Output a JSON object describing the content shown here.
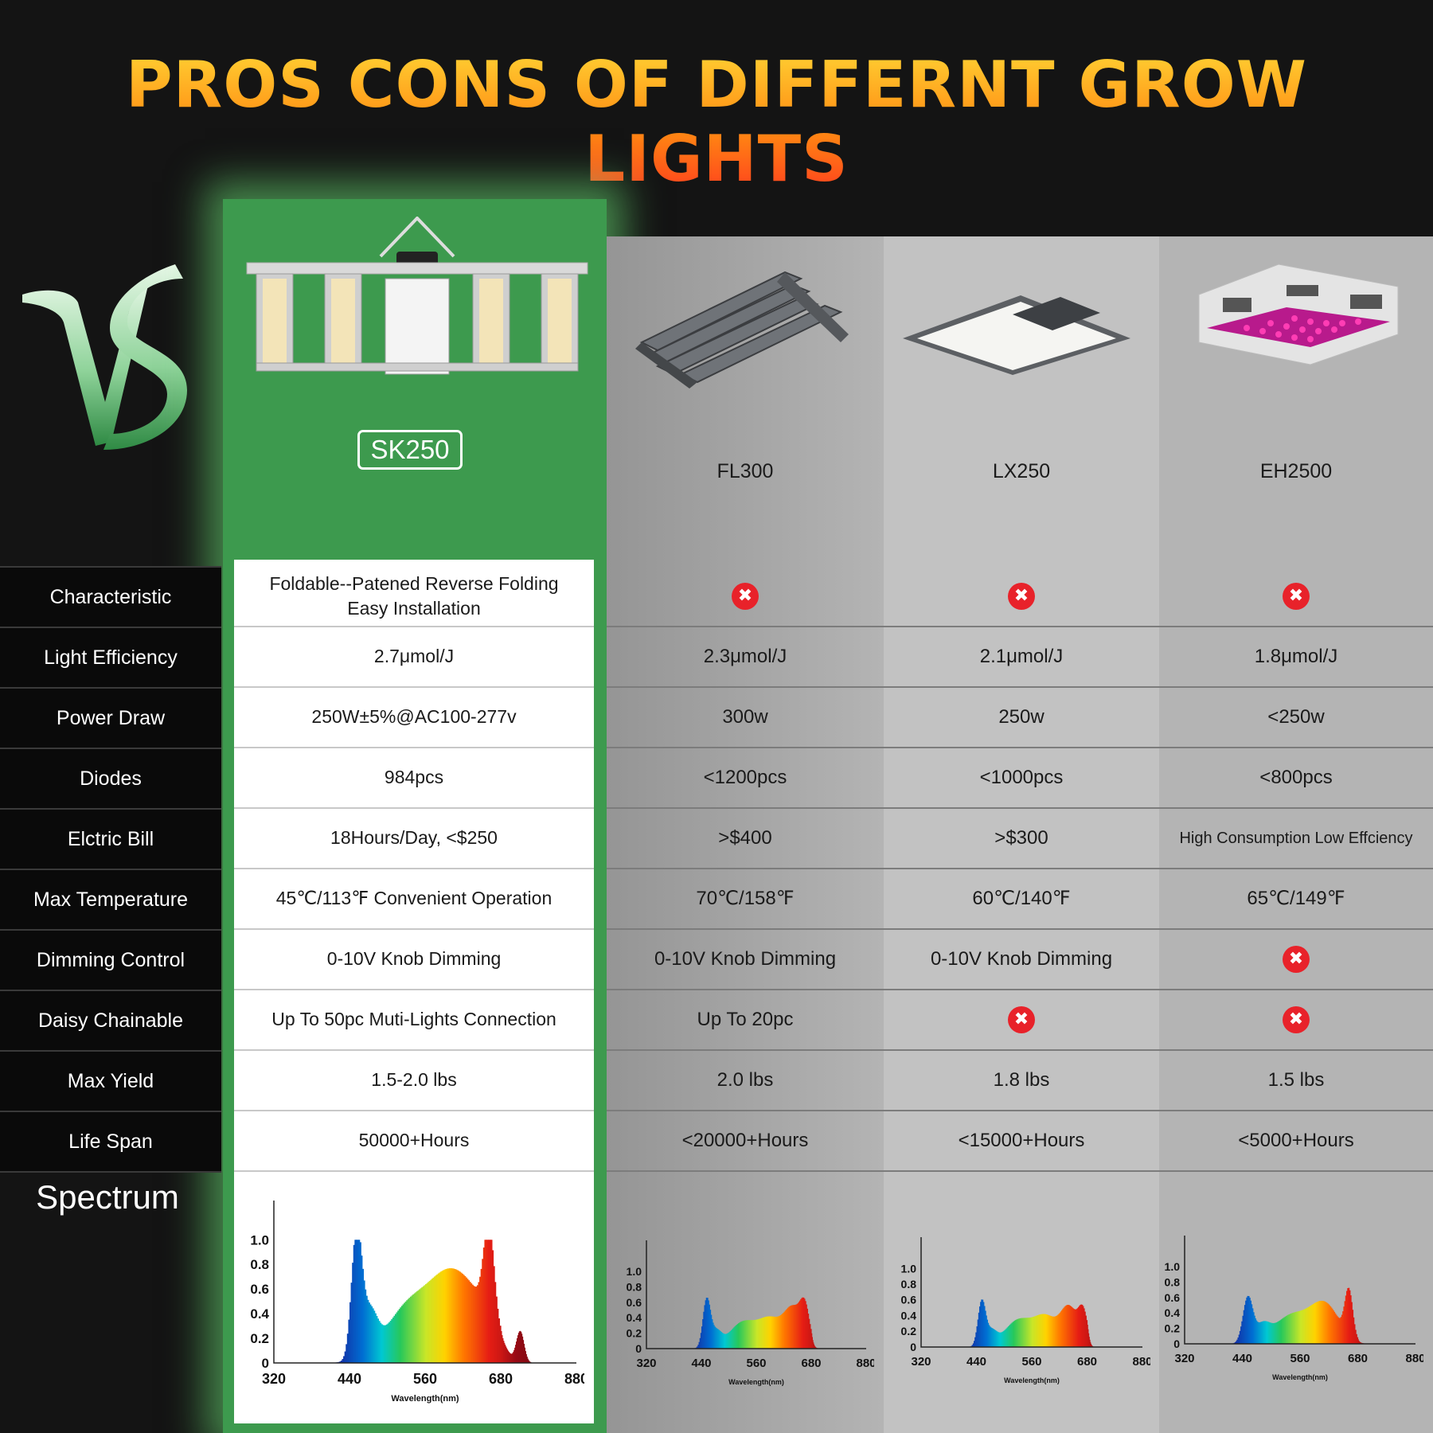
{
  "header": {
    "title": "PROS CONS OF DIFFERNT GROW LIGHTS"
  },
  "colors": {
    "featured_column": "#3d9a4e",
    "title_top": "#ffd233",
    "title_bottom": "#ff3e1e",
    "cross_icon": "#e8222a"
  },
  "featured": {
    "badge": "SK250"
  },
  "products": [
    "FL300",
    "LX250",
    "EH2500"
  ],
  "rows": [
    {
      "label": "Characteristic",
      "sk": "Foldable--Patened Reverse Folding\nEasy Installation",
      "values": [
        "x-icon",
        "x-icon",
        "x-icon"
      ]
    },
    {
      "label": "Light Efficiency",
      "sk": "2.7μmol/J",
      "values": [
        "2.3μmol/J",
        "2.1μmol/J",
        "1.8μmol/J"
      ]
    },
    {
      "label": "Power Draw",
      "sk": "250W±5%@AC100-277v",
      "values": [
        "300w",
        "250w",
        "<250w"
      ]
    },
    {
      "label": "Diodes",
      "sk": "984pcs",
      "values": [
        "<1200pcs",
        "<1000pcs",
        "<800pcs"
      ]
    },
    {
      "label": "Elctric Bill",
      "sk": "18Hours/Day, <$250",
      "values": [
        ">$400",
        ">$300",
        "High Consumption Low Effciency"
      ]
    },
    {
      "label": "Max Temperature",
      "sk": "45℃/113℉ Convenient Operation",
      "values": [
        "70℃/158℉",
        "60℃/140℉",
        "65℃/149℉"
      ]
    },
    {
      "label": "Dimming Control",
      "sk": "0-10V Knob Dimming",
      "values": [
        "0-10V Knob Dimming",
        "0-10V Knob Dimming",
        "x-icon"
      ]
    },
    {
      "label": "Daisy Chainable",
      "sk": "Up To 50pc Muti-Lights Connection",
      "values": [
        "Up To 20pc",
        "x-icon",
        "x-icon"
      ]
    },
    {
      "label": "Max Yield",
      "sk": "1.5-2.0 lbs",
      "values": [
        "2.0 lbs",
        "1.8 lbs",
        "1.5 lbs"
      ]
    },
    {
      "label": "Life Span",
      "sk": "50000+Hours",
      "values": [
        "<20000+Hours",
        "<15000+Hours",
        "<5000+Hours"
      ]
    }
  ],
  "spectrum": {
    "label": "Spectrum",
    "x_ticks": [
      "320",
      "440",
      "560",
      "680",
      "880"
    ],
    "y_ticks": [
      "0",
      "0.2",
      "0.4",
      "0.6",
      "0.8",
      "1.0"
    ],
    "xlabel": "Wavelength(nm)"
  },
  "cross_glyph": "✖"
}
